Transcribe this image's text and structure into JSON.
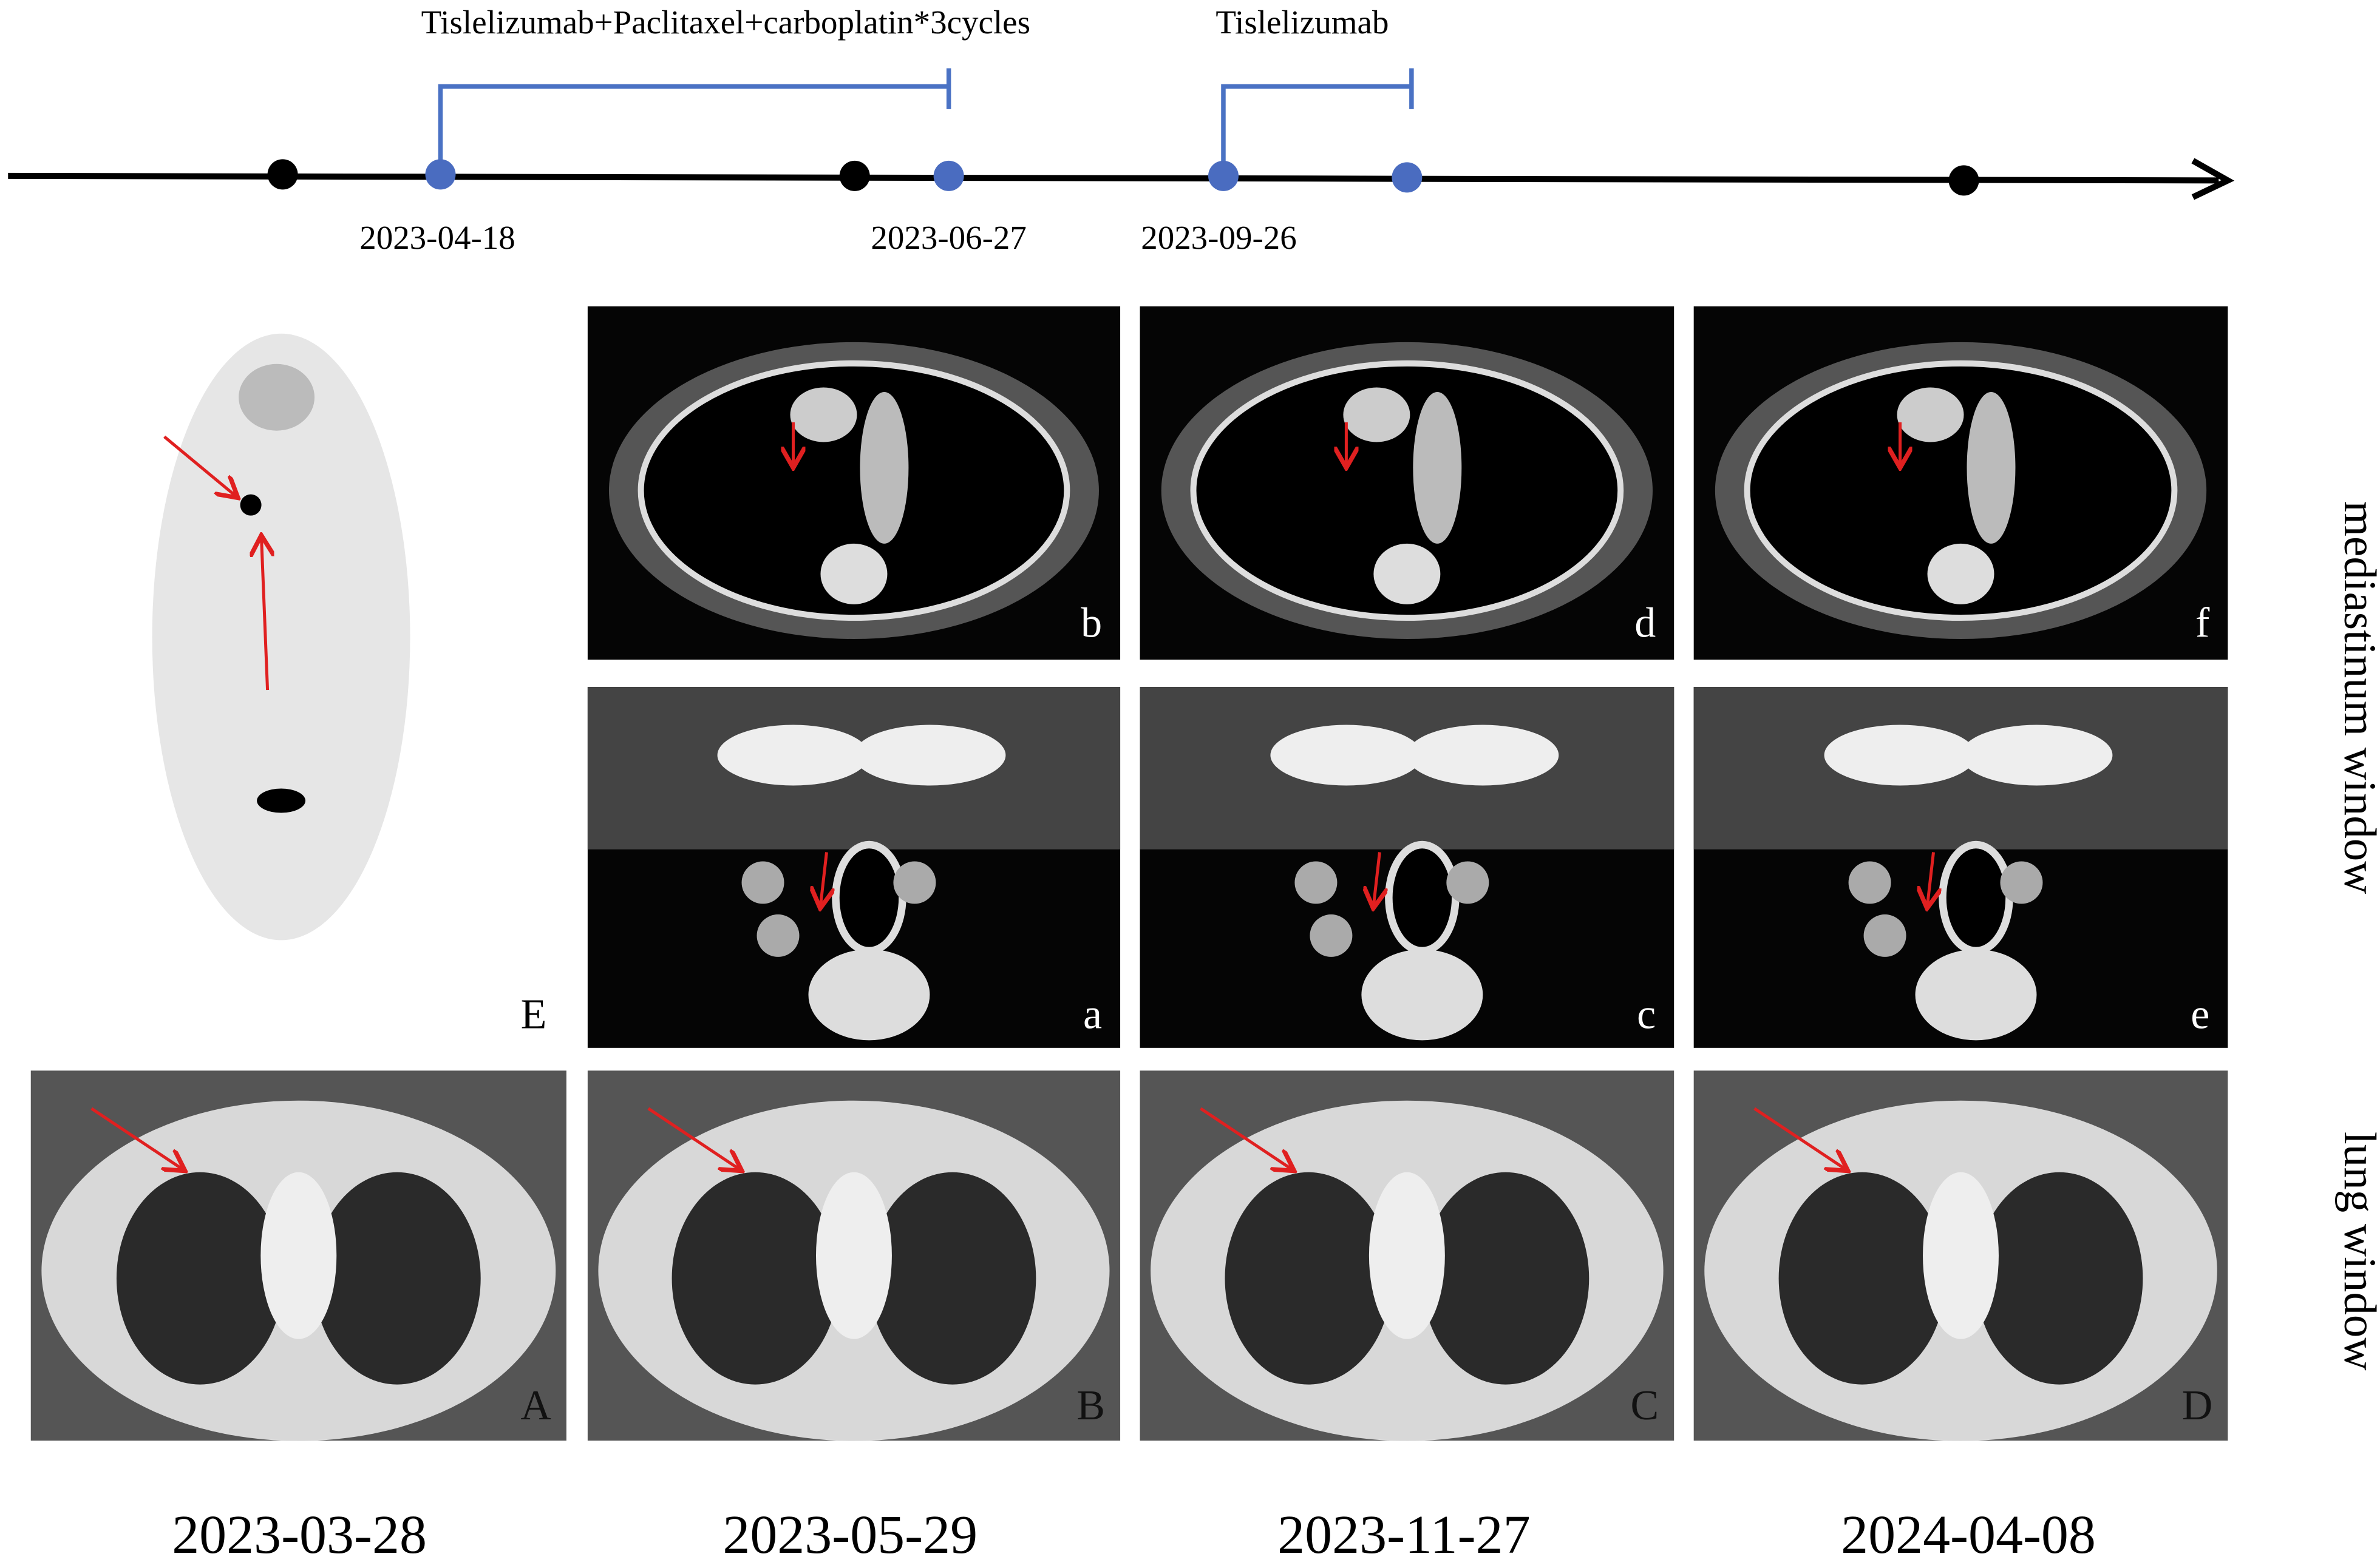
{
  "timeline": {
    "treatments": [
      "Tislelizumab+Paclitaxel+carboplatin*3cycles",
      "Tislelizumab"
    ],
    "dates": [
      "2023-04-18",
      "2023-06-27",
      "2023-09-26"
    ]
  },
  "panels": {
    "mediastinum_upper": [
      "b",
      "d",
      "f"
    ],
    "mediastinum_lower": [
      "a",
      "c",
      "e"
    ],
    "lung": [
      "A",
      "B",
      "C",
      "D"
    ],
    "pet": "E"
  },
  "scan_dates": [
    "2023-03-28",
    "2023-05-29",
    "2023-11-27",
    "2024-04-08"
  ],
  "window_labels": [
    "mediastinum window",
    "lung window"
  ]
}
